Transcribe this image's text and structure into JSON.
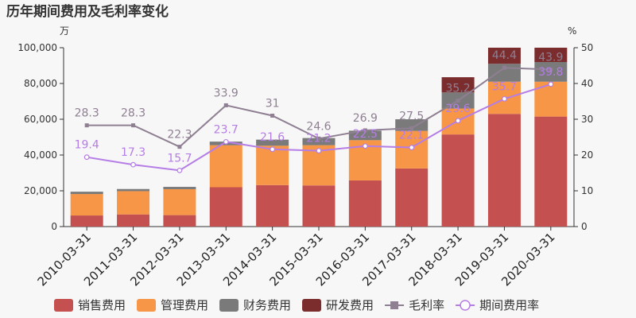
{
  "chart_data": {
    "type": "bar",
    "title": "历年期间费用及毛利率变化",
    "left_unit": "万",
    "right_unit": "%",
    "categories": [
      "2010-03-31",
      "2011-03-31",
      "2012-03-31",
      "2013-03-31",
      "2014-03-31",
      "2015-03-31",
      "2016-03-31",
      "2017-03-31",
      "2018-03-31",
      "2019-03-31",
      "2020-03-31"
    ],
    "left_axis": {
      "min": 0,
      "max": 100000,
      "ticks": [
        0,
        20000,
        40000,
        60000,
        80000,
        100000
      ],
      "tick_labels": [
        "0",
        "20,000",
        "40,000",
        "60,000",
        "80,000",
        "100,000"
      ]
    },
    "right_axis": {
      "min": 0,
      "max": 50,
      "ticks": [
        0,
        10,
        20,
        30,
        40,
        50
      ],
      "tick_labels": [
        "0",
        "10",
        "20",
        "30",
        "40",
        "50"
      ]
    },
    "stacked": true,
    "series": [
      {
        "name": "销售费用",
        "kind": "bar",
        "color": "#c4504f",
        "values": [
          6200,
          6800,
          6400,
          22000,
          23200,
          23000,
          25800,
          32500,
          51500,
          63000,
          61500
        ]
      },
      {
        "name": "管理费用",
        "kind": "bar",
        "color": "#f79646",
        "values": [
          12000,
          13000,
          14500,
          23500,
          22000,
          22500,
          22500,
          21000,
          14500,
          18000,
          19500
        ]
      },
      {
        "name": "财务费用",
        "kind": "bar",
        "color": "#7a7a7a",
        "values": [
          1300,
          1200,
          1300,
          2000,
          3400,
          4000,
          5300,
          6500,
          9000,
          10000,
          11000
        ]
      },
      {
        "name": "研发费用",
        "kind": "bar",
        "color": "#7b2d2d",
        "values": [
          0,
          0,
          0,
          0,
          0,
          0,
          0,
          0,
          8500,
          9000,
          8000
        ]
      },
      {
        "name": "毛利率",
        "kind": "line",
        "axis": "right",
        "color": "#8f7f92",
        "values": [
          28.3,
          28.3,
          22.3,
          33.9,
          31,
          24.6,
          26.9,
          27.5,
          35.2,
          44.4,
          43.9
        ],
        "labels": [
          "28.3",
          "28.3",
          "22.3",
          "33.9",
          "31",
          "24.6",
          "26.9",
          "27.5",
          "35.2",
          "44.4",
          "43.9"
        ]
      },
      {
        "name": "期间费用率",
        "kind": "line",
        "axis": "right",
        "color": "#b57de6",
        "values": [
          19.4,
          17.3,
          15.7,
          23.7,
          21.6,
          21.2,
          22.5,
          22.1,
          29.6,
          35.7,
          39.8
        ],
        "labels": [
          "19.4",
          "17.3",
          "15.7",
          "23.7",
          "21.6",
          "21.2",
          "22.5",
          "22.1",
          "29.6",
          "35.7",
          "39.8"
        ]
      }
    ],
    "legend_position": "bottom",
    "grid": false
  }
}
